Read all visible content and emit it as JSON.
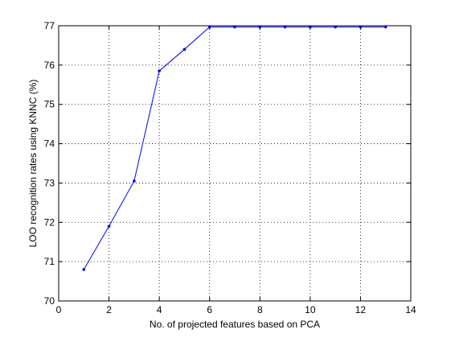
{
  "chart_data": {
    "type": "line",
    "title": "",
    "xlabel": "No. of projected features based on PCA",
    "ylabel": "LOO recognition rates using KNNC (%)",
    "xlim": [
      0,
      14
    ],
    "ylim": [
      70,
      77
    ],
    "xticks": [
      0,
      2,
      4,
      6,
      8,
      10,
      12,
      14
    ],
    "yticks": [
      70,
      71,
      72,
      73,
      74,
      75,
      76,
      77
    ],
    "grid": true,
    "grid_style": "dotted",
    "line_color": "#0000ff",
    "marker": "point",
    "series": [
      {
        "x": [
          1,
          2,
          3,
          4,
          5,
          6,
          7,
          8,
          9,
          10,
          11,
          12,
          13
        ],
        "values": [
          70.8,
          71.9,
          73.05,
          75.85,
          76.4,
          76.97,
          76.97,
          76.97,
          76.97,
          76.97,
          76.97,
          76.97,
          76.97
        ]
      }
    ]
  }
}
